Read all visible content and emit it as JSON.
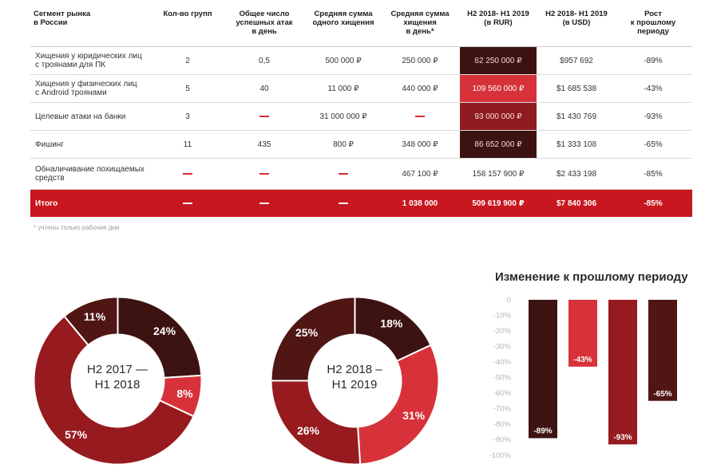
{
  "table": {
    "headers": {
      "segment": "Сегмент рынка\nв России",
      "groups": "Кол-во групп",
      "attacks": "Общее число\nуспешных атак\nв день",
      "avg_theft": "Средняя сумма\nодного хищения",
      "avg_day": "Средняя сумма\nхищения\nв день*",
      "rub": "H2 2018- H1 2019\n(в RUR)",
      "usd": "H2 2018- H1 2019\n(в USD)",
      "growth": "Рост\nк прошлому\nпериоду"
    },
    "rows": [
      {
        "segment": "Хищения у юридических лиц\nс троянами для ПК",
        "groups": "2",
        "attacks": "0,5",
        "avg_theft": "500 000 ₽",
        "avg_day": "250 000 ₽",
        "rub": "62 250 000 ₽",
        "usd": "$957 692",
        "growth": "-89%"
      },
      {
        "segment": "Хищения у физических лиц\nс Android троянами",
        "groups": "5",
        "attacks": "40",
        "avg_theft": "11 000 ₽",
        "avg_day": "440 000 ₽",
        "rub": "109 560 000 ₽",
        "usd": "$1 685 538",
        "growth": "-43%"
      },
      {
        "segment": "Целевые атаки на банки",
        "groups": "3",
        "attacks": "",
        "avg_theft": "31 000 000 ₽",
        "avg_day": "",
        "rub": "93 000 000 ₽",
        "usd": "$1 430 769",
        "growth": "-93%"
      },
      {
        "segment": "Фишинг",
        "groups": "11",
        "attacks": "435",
        "avg_theft": "800 ₽",
        "avg_day": "348 000 ₽",
        "rub": "86 652 000 ₽",
        "usd": "$1 333 108",
        "growth": "-65%"
      },
      {
        "segment": "Обналичивание похищаемых\nсредств",
        "groups": "",
        "attacks": "",
        "avg_theft": "",
        "avg_day": "467 100 ₽",
        "rub": "158 157 900 ₽",
        "usd": "$2 433 198",
        "growth": "-85%"
      }
    ],
    "total": {
      "segment": "Итого",
      "groups": "",
      "attacks": "",
      "avg_theft": "",
      "avg_day": "1 038 000",
      "rub": "509 619 900 ₽",
      "usd": "$7 840 306",
      "growth": "-85%"
    },
    "footnote": "* учтены только рабочие дни",
    "highlight_colors": {
      "dark": "#3d1311",
      "red": "#d7323a",
      "maroon": "#8e1b1f",
      "total": "#c8171e"
    }
  },
  "chart_data": [
    {
      "type": "pie",
      "title": "H2 2017 —\nH1 2018",
      "slices": [
        {
          "value": 24,
          "label": "24%",
          "color": "#3d1311"
        },
        {
          "value": 8,
          "label": "8%",
          "color": "#d7323a"
        },
        {
          "value": 57,
          "label": "57%",
          "color": "#961a1e"
        },
        {
          "value": 11,
          "label": "11%",
          "color": "#4f1614"
        }
      ]
    },
    {
      "type": "pie",
      "title": "H2 2018 –\nH1 2019",
      "slices": [
        {
          "value": 18,
          "label": "18%",
          "color": "#3d1311"
        },
        {
          "value": 31,
          "label": "31%",
          "color": "#d7323a"
        },
        {
          "value": 26,
          "label": "26%",
          "color": "#961a1e"
        },
        {
          "value": 25,
          "label": "25%",
          "color": "#4f1614"
        }
      ]
    },
    {
      "type": "bar",
      "title": "Изменение к прошлому периоду",
      "ylim": [
        -100,
        0
      ],
      "yticks": [
        "0",
        "-10%",
        "-20%",
        "-30%",
        "-40%",
        "-50%",
        "-60%",
        "-70%",
        "-80%",
        "-90%",
        "-100%"
      ],
      "values": [
        -89,
        -43,
        -93,
        -65
      ],
      "labels": [
        "-89%",
        "-43%",
        "-93%",
        "-65%"
      ],
      "colors": [
        "#3d1311",
        "#d7323a",
        "#961a1e",
        "#4f1614"
      ]
    }
  ]
}
